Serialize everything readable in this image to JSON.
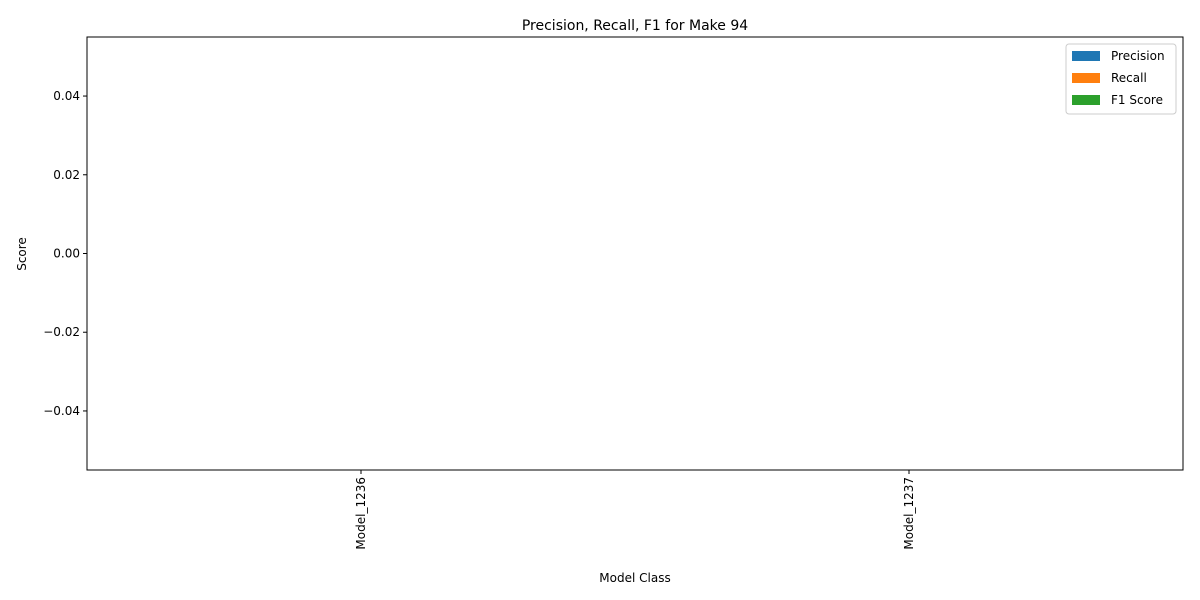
{
  "chart_data": {
    "type": "bar",
    "title": "Precision, Recall, F1 for Make 94",
    "xlabel": "Model Class",
    "ylabel": "Score",
    "categories": [
      "Model_1236",
      "Model_1237"
    ],
    "series": [
      {
        "name": "Precision",
        "color": "#1f77b4",
        "values": [
          0,
          0
        ]
      },
      {
        "name": "Recall",
        "color": "#ff7f0e",
        "values": [
          0,
          0
        ]
      },
      {
        "name": "F1 Score",
        "color": "#2ca02c",
        "values": [
          0,
          0
        ]
      }
    ],
    "ylim": [
      -0.055,
      0.055
    ],
    "yticks": [
      -0.04,
      -0.02,
      0.0,
      0.02,
      0.04
    ],
    "ytick_labels": [
      "−0.04",
      "−0.02",
      "0.00",
      "0.02",
      "0.04"
    ],
    "grid": false,
    "legend_position": "top-right"
  }
}
